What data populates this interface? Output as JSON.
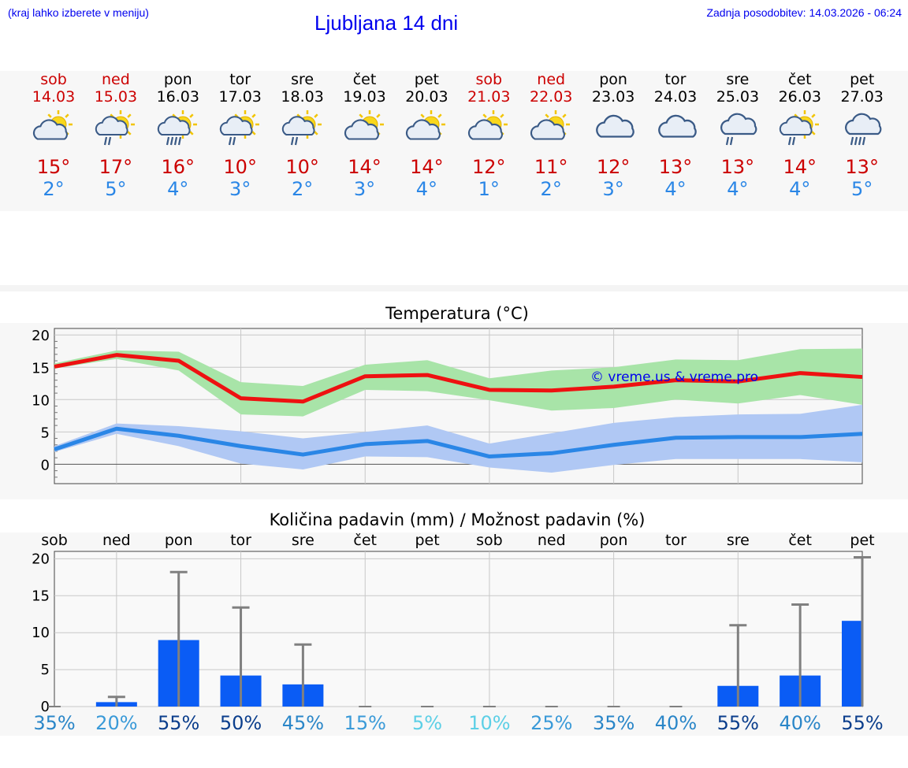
{
  "header": {
    "left_note": "(kraj lahko izberete v meniju)",
    "title": "Ljubljana 14 dni",
    "updated": "Zadnja posodobitev: 14.03.2026 - 06:24"
  },
  "days": [
    {
      "name": "sob",
      "date": "14.03",
      "weekend": true,
      "icon": "sun-cloud-icon",
      "tmax": "15°",
      "tmin": "2°"
    },
    {
      "name": "ned",
      "date": "15.03",
      "weekend": true,
      "icon": "sun-cloud-rain-icon",
      "tmax": "17°",
      "tmin": "5°"
    },
    {
      "name": "pon",
      "date": "16.03",
      "weekend": false,
      "icon": "sun-cloud-heavy-rain-icon",
      "tmax": "16°",
      "tmin": "4°"
    },
    {
      "name": "tor",
      "date": "17.03",
      "weekend": false,
      "icon": "sun-cloud-rain-icon",
      "tmax": "10°",
      "tmin": "3°"
    },
    {
      "name": "sre",
      "date": "18.03",
      "weekend": false,
      "icon": "sun-cloud-rain-icon",
      "tmax": "10°",
      "tmin": "2°"
    },
    {
      "name": "čet",
      "date": "19.03",
      "weekend": false,
      "icon": "sun-cloud-icon",
      "tmax": "14°",
      "tmin": "3°"
    },
    {
      "name": "pet",
      "date": "20.03",
      "weekend": false,
      "icon": "sun-cloud-icon",
      "tmax": "14°",
      "tmin": "4°"
    },
    {
      "name": "sob",
      "date": "21.03",
      "weekend": true,
      "icon": "sun-cloud-icon",
      "tmax": "12°",
      "tmin": "1°"
    },
    {
      "name": "ned",
      "date": "22.03",
      "weekend": true,
      "icon": "sun-cloud-icon",
      "tmax": "11°",
      "tmin": "2°"
    },
    {
      "name": "pon",
      "date": "23.03",
      "weekend": false,
      "icon": "cloud-icon",
      "tmax": "12°",
      "tmin": "3°"
    },
    {
      "name": "tor",
      "date": "24.03",
      "weekend": false,
      "icon": "cloud-icon",
      "tmax": "13°",
      "tmin": "4°"
    },
    {
      "name": "sre",
      "date": "25.03",
      "weekend": false,
      "icon": "cloud-rain-icon",
      "tmax": "13°",
      "tmin": "4°"
    },
    {
      "name": "čet",
      "date": "26.03",
      "weekend": false,
      "icon": "sun-cloud-rain-icon",
      "tmax": "14°",
      "tmin": "4°"
    },
    {
      "name": "pet",
      "date": "27.03",
      "weekend": false,
      "icon": "cloud-heavy-rain-icon",
      "tmax": "13°",
      "tmin": "5°"
    }
  ],
  "colors": {
    "tmax_line": "#ee1111",
    "tmax_band": "#a8e4a8",
    "tmin_line": "#2a86e6",
    "tmin_band": "#b0c8f4",
    "precip_bar": "#0a5cf5",
    "error_bar": "#808080",
    "weekend_text": "#cc0000",
    "link_text": "#0000ee"
  },
  "chart_data": [
    {
      "type": "line",
      "title": "Temperatura (°C)",
      "watermark": "© vreme.us & vreme.pro",
      "ylim": [
        -3,
        21
      ],
      "yticks": [
        "20",
        "15",
        "10",
        "5",
        "0"
      ],
      "ytick_values": [
        20,
        15,
        10,
        5,
        0
      ],
      "series": [
        {
          "name": "max",
          "values": [
            15.1,
            16.9,
            16.0,
            10.2,
            9.7,
            13.6,
            13.8,
            11.5,
            11.4,
            12.0,
            13.0,
            12.8,
            14.1,
            13.5
          ]
        },
        {
          "name": "max_upper",
          "values": [
            15.6,
            17.6,
            17.4,
            12.7,
            12.1,
            15.4,
            16.1,
            13.3,
            14.5,
            15.0,
            16.2,
            16.1,
            17.8,
            17.9
          ]
        },
        {
          "name": "max_lower",
          "values": [
            14.8,
            16.3,
            14.5,
            7.7,
            7.4,
            11.5,
            11.3,
            9.9,
            8.3,
            8.7,
            10.0,
            9.4,
            10.7,
            9.2
          ]
        },
        {
          "name": "min",
          "values": [
            2.3,
            5.5,
            4.4,
            2.8,
            1.5,
            3.1,
            3.6,
            1.2,
            1.7,
            3.0,
            4.1,
            4.2,
            4.2,
            4.7
          ]
        },
        {
          "name": "min_upper",
          "values": [
            2.8,
            6.3,
            5.9,
            5.1,
            4.0,
            5.0,
            6.0,
            3.2,
            4.8,
            6.4,
            7.3,
            7.7,
            7.8,
            9.2
          ]
        },
        {
          "name": "min_lower",
          "values": [
            1.9,
            4.7,
            2.8,
            0.1,
            -0.8,
            1.2,
            1.1,
            -0.5,
            -1.3,
            -0.1,
            0.8,
            0.8,
            0.8,
            0.3
          ]
        }
      ]
    },
    {
      "type": "bar",
      "title": "Količina padavin (mm) / Možnost padavin (%)",
      "categories": [
        "sob",
        "ned",
        "pon",
        "tor",
        "sre",
        "čet",
        "pet",
        "sob",
        "ned",
        "pon",
        "tor",
        "sre",
        "čet",
        "pet"
      ],
      "ylim": [
        0,
        21
      ],
      "yticks": [
        "20",
        "15",
        "10",
        "5",
        "0"
      ],
      "ytick_values": [
        20,
        15,
        10,
        5,
        0
      ],
      "values": [
        0,
        0.6,
        9.0,
        4.2,
        3.0,
        0,
        0,
        0,
        0,
        0,
        0,
        2.8,
        4.2,
        11.6
      ],
      "error_max": [
        0,
        1.3,
        18.2,
        13.4,
        8.4,
        0,
        0,
        0,
        0,
        0,
        0,
        11.0,
        13.8,
        20.2
      ],
      "probability": [
        "35%",
        "20%",
        "55%",
        "50%",
        "45%",
        "15%",
        "5%",
        "10%",
        "25%",
        "35%",
        "40%",
        "55%",
        "40%",
        "55%"
      ],
      "probability_values": [
        35,
        20,
        55,
        50,
        45,
        15,
        5,
        10,
        25,
        35,
        40,
        55,
        40,
        55
      ]
    }
  ]
}
